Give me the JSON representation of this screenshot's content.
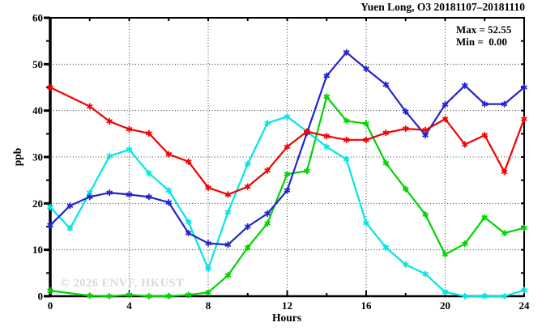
{
  "watermark": "© 2026 ENVF, HKUST",
  "chart_data": {
    "type": "line",
    "title": "Yuen Long, O3 20181107–20181110",
    "stats": {
      "max_label": "Max = 52.55",
      "min_label": "Min =  0.00"
    },
    "xlabel": "Hours",
    "ylabel": "ppb",
    "unit": "ppb",
    "xlim": [
      0,
      24
    ],
    "ylim": [
      0,
      60
    ],
    "x_major_ticks": [
      0,
      4,
      8,
      12,
      16,
      20,
      24
    ],
    "x_minor_step": 2,
    "y_major_ticks": [
      0,
      10,
      20,
      30,
      40,
      50,
      60
    ],
    "y_minor_step": 5,
    "grid": {
      "x": [
        4,
        8,
        12,
        16,
        20
      ],
      "y": [
        10,
        20,
        30,
        40,
        50
      ]
    },
    "grid_on": true,
    "legend_position": "none",
    "marker": "asterisk",
    "x": [
      0,
      1,
      2,
      3,
      4,
      5,
      6,
      7,
      8,
      9,
      10,
      11,
      12,
      13,
      14,
      15,
      16,
      17,
      18,
      19,
      20,
      21,
      22,
      23,
      24
    ],
    "series": [
      {
        "name": "green-series",
        "color": "#00d400",
        "values": [
          1.2,
          null,
          0.1,
          0.0,
          0.3,
          0.0,
          0.0,
          0.3,
          0.8,
          4.5,
          10.5,
          15.7,
          26.3,
          27.0,
          43.0,
          37.8,
          37.2,
          28.7,
          23.1,
          17.6,
          9.0,
          11.3,
          17.0,
          13.6,
          14.7
        ]
      },
      {
        "name": "cyan-series",
        "color": "#00e6e6",
        "values": [
          19.2,
          14.6,
          22.3,
          30.2,
          31.6,
          26.5,
          22.8,
          16.0,
          5.9,
          18.1,
          28.5,
          37.3,
          38.7,
          35.5,
          32.2,
          29.5,
          15.8,
          10.5,
          6.8,
          4.8,
          0.9,
          0.0,
          0.0,
          0.0,
          1.3
        ]
      },
      {
        "name": "blue-series",
        "color": "#2323cf",
        "values": [
          15.3,
          19.5,
          21.4,
          22.3,
          21.9,
          21.4,
          20.2,
          13.6,
          11.4,
          11.1,
          15.0,
          17.8,
          22.8,
          35.2,
          47.5,
          52.55,
          49.0,
          45.6,
          39.8,
          34.7,
          41.3,
          45.4,
          41.4,
          41.4,
          45.0
        ]
      },
      {
        "name": "red-series",
        "color": "#f40000",
        "values": [
          45.0,
          null,
          40.9,
          37.7,
          36.0,
          35.1,
          30.6,
          29.0,
          23.4,
          21.9,
          23.6,
          27.1,
          32.2,
          35.5,
          34.5,
          33.7,
          33.7,
          35.2,
          36.1,
          35.8,
          38.2,
          32.7,
          34.7,
          26.8,
          38.2
        ]
      }
    ]
  }
}
